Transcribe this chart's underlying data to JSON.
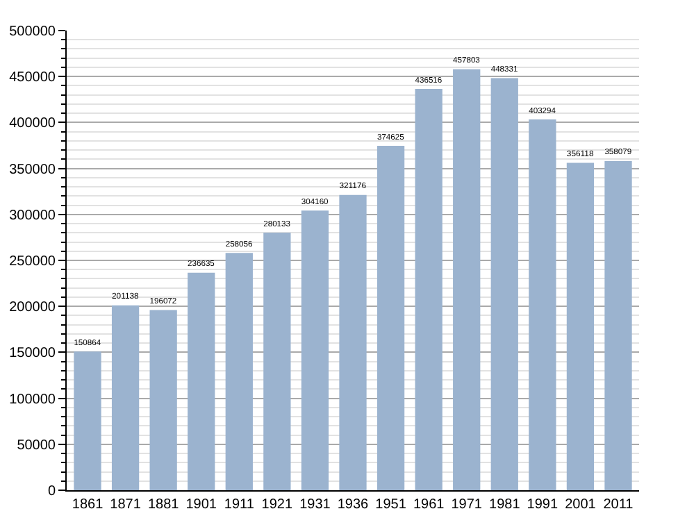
{
  "chart_data": {
    "type": "bar",
    "categories": [
      "1861",
      "1871",
      "1881",
      "1901",
      "1911",
      "1921",
      "1931",
      "1936",
      "1951",
      "1961",
      "1971",
      "1981",
      "1991",
      "2001",
      "2011"
    ],
    "values": [
      150864,
      201138,
      196072,
      236635,
      258056,
      280133,
      304160,
      321176,
      374625,
      436516,
      457803,
      448331,
      403294,
      356118,
      358079
    ],
    "color": "#9bb3cf",
    "ylim": [
      0,
      500000
    ],
    "yticks": [
      0,
      50000,
      100000,
      150000,
      200000,
      250000,
      300000,
      350000,
      400000,
      450000,
      500000
    ],
    "grid": "y",
    "data_labels": true
  }
}
